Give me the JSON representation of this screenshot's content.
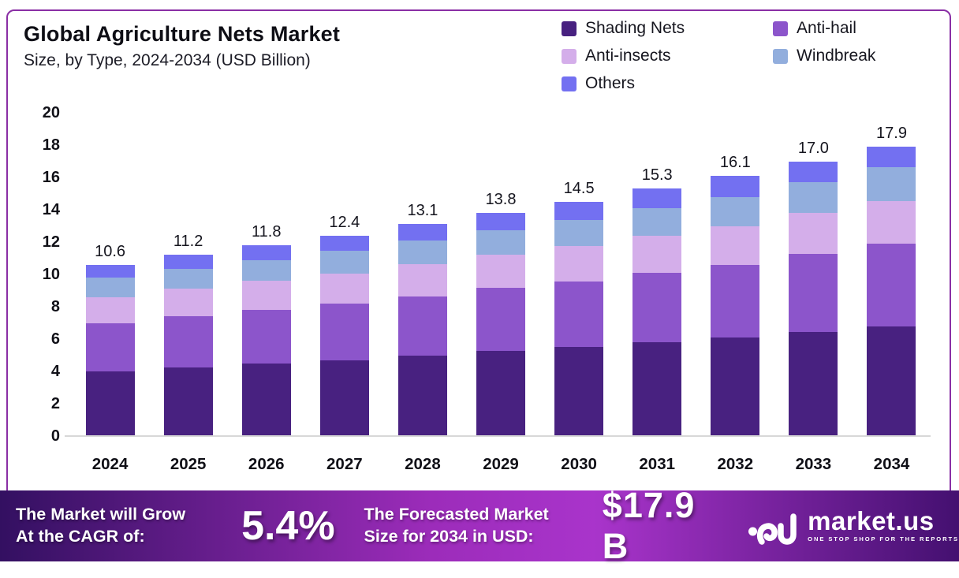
{
  "header": {
    "title": "Global Agriculture Nets Market",
    "subtitle": "Size, by Type, 2024-2034 (USD Billion)"
  },
  "chart_data": {
    "type": "bar",
    "stacked": true,
    "title": "Global Agriculture Nets Market Size, by Type, 2024-2034 (USD Billion)",
    "categories": [
      "2024",
      "2025",
      "2026",
      "2027",
      "2028",
      "2029",
      "2030",
      "2031",
      "2032",
      "2033",
      "2034"
    ],
    "series": [
      {
        "name": "Shading Nets",
        "color": "#482180",
        "values": [
          4.0,
          4.25,
          4.5,
          4.7,
          5.0,
          5.25,
          5.5,
          5.8,
          6.1,
          6.45,
          6.8
        ]
      },
      {
        "name": "Anti-hail",
        "color": "#8c55cb",
        "values": [
          3.0,
          3.15,
          3.3,
          3.5,
          3.65,
          3.9,
          4.05,
          4.3,
          4.5,
          4.8,
          5.1
        ]
      },
      {
        "name": "Anti-insects",
        "color": "#d4aeea",
        "values": [
          1.6,
          1.7,
          1.8,
          1.85,
          2.0,
          2.05,
          2.2,
          2.3,
          2.4,
          2.55,
          2.65
        ]
      },
      {
        "name": "Windbreak",
        "color": "#92aedd",
        "values": [
          1.2,
          1.25,
          1.3,
          1.4,
          1.45,
          1.55,
          1.6,
          1.7,
          1.8,
          1.9,
          2.1
        ]
      },
      {
        "name": "Others",
        "color": "#7370f1",
        "values": [
          0.8,
          0.85,
          0.9,
          0.95,
          1.0,
          1.05,
          1.15,
          1.2,
          1.3,
          1.3,
          1.25
        ]
      }
    ],
    "totals_labels": [
      "10.6",
      "11.2",
      "11.8",
      "12.4",
      "13.1",
      "13.8",
      "14.5",
      "15.3",
      "16.1",
      "17.0",
      "17.9"
    ],
    "ylim": [
      0,
      20
    ],
    "yticks": [
      0,
      2,
      4,
      6,
      8,
      10,
      12,
      14,
      16,
      18,
      20
    ],
    "grid": false,
    "legend_position": "top-right",
    "xlabel": "",
    "ylabel": ""
  },
  "banner": {
    "cagr_label_line1": "The Market will Grow",
    "cagr_label_line2": "At the CAGR of:",
    "cagr_value": "5.4%",
    "forecast_label_line1": "The Forecasted Market",
    "forecast_label_line2": "Size for 2034 in USD:",
    "forecast_value": "$17.9 B",
    "brand": "market.us",
    "brand_tagline": "ONE STOP SHOP FOR THE REPORTS"
  },
  "colors": {
    "card_border": "#8a2fa5",
    "banner_gradient_left": "#331061",
    "banner_gradient_mid": "#9c2cba",
    "banner_gradient_bright": "#a934cb",
    "banner_gradient_right": "#441070"
  }
}
